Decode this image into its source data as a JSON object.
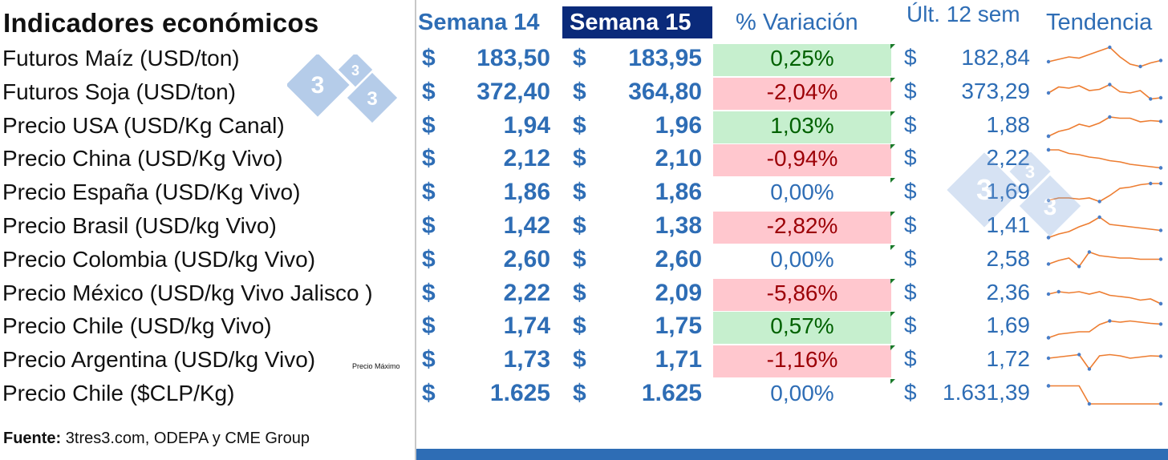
{
  "header": {
    "title": "Indicadores económicos",
    "col_week14": "Semana 14",
    "col_week15": "Semana 15",
    "col_variation": "% Variación",
    "col_last12": "Últ. 12 sem",
    "col_trend": "Tendencia"
  },
  "currency_symbol": "$",
  "colors": {
    "accent_blue": "#2e6db5",
    "header_navy": "#0a2a7a",
    "positive_fill": "#c6efce",
    "positive_text": "#006100",
    "negative_fill": "#ffc7ce",
    "negative_text": "#9c0006",
    "sparkline": "#ed7d31",
    "sparkline_marker": "#4a7ec7"
  },
  "logo_text": "3 3 3",
  "rows": [
    {
      "label": "Futuros Maíz (USD/ton)",
      "w14": "183,50",
      "w15": "183,95",
      "variation": "0,25%",
      "status": "pos",
      "last12": "182,84",
      "trend": [
        0.4,
        0.5,
        0.6,
        0.55,
        0.7,
        0.85,
        1.0,
        0.6,
        0.3,
        0.2,
        0.35,
        0.45
      ]
    },
    {
      "label": "Futuros Soja (USD/ton)",
      "w14": "372,40",
      "w15": "364,80",
      "variation": "-2,04%",
      "status": "neg",
      "last12": "373,29",
      "trend": [
        0.5,
        0.75,
        0.7,
        0.8,
        0.6,
        0.65,
        0.85,
        0.55,
        0.5,
        0.6,
        0.25,
        0.3
      ]
    },
    {
      "label": "Precio USA (USD/Kg Canal)",
      "w14": "1,94",
      "w15": "1,96",
      "variation": "1,03%",
      "status": "pos",
      "last12": "1,88",
      "trend": [
        0.1,
        0.3,
        0.4,
        0.6,
        0.5,
        0.65,
        0.9,
        0.85,
        0.85,
        0.7,
        0.75,
        0.72
      ]
    },
    {
      "label": "Precio China (USD/Kg Vivo)",
      "w14": "2,12",
      "w15": "2,10",
      "variation": "-0,94%",
      "status": "neg",
      "last12": "2,22",
      "trend": [
        0.9,
        0.9,
        0.75,
        0.7,
        0.6,
        0.55,
        0.45,
        0.4,
        0.3,
        0.25,
        0.2,
        0.15
      ]
    },
    {
      "label": "Precio España (USD/Kg Vivo)",
      "w14": "1,86",
      "w15": "1,86",
      "variation": "0,00%",
      "status": "zero",
      "last12": "1,69",
      "trend": [
        0.2,
        0.3,
        0.3,
        0.25,
        0.3,
        0.15,
        0.4,
        0.7,
        0.75,
        0.85,
        0.9,
        0.9
      ]
    },
    {
      "label": "Precio  Brasil (USD/kg Vivo)",
      "w14": "1,42",
      "w15": "1,38",
      "variation": "-2,82%",
      "status": "neg",
      "last12": "1,41",
      "trend": [
        0.05,
        0.2,
        0.3,
        0.5,
        0.65,
        0.9,
        0.6,
        0.55,
        0.5,
        0.45,
        0.4,
        0.35
      ]
    },
    {
      "label": "Precio Colombia (USD/kg Vivo)",
      "w14": "2,60",
      "w15": "2,60",
      "variation": "0,00%",
      "status": "zero",
      "last12": "2,58",
      "trend": [
        0.35,
        0.5,
        0.6,
        0.25,
        0.85,
        0.7,
        0.65,
        0.6,
        0.6,
        0.55,
        0.55,
        0.55
      ]
    },
    {
      "label": "Precio México (USD/kg Vivo Jalisco )",
      "w14": "2,22",
      "w15": "2,09",
      "variation": "-5,86%",
      "status": "neg",
      "last12": "2,36",
      "trend": [
        0.5,
        0.6,
        0.55,
        0.6,
        0.5,
        0.6,
        0.45,
        0.4,
        0.35,
        0.25,
        0.3,
        0.1
      ]
    },
    {
      "label": "Precio Chile (USD/kg Vivo)",
      "w14": "1,74",
      "w15": "1,75",
      "variation": "0,57%",
      "status": "pos",
      "last12": "1,69",
      "trend": [
        0.05,
        0.2,
        0.25,
        0.3,
        0.3,
        0.6,
        0.75,
        0.7,
        0.75,
        0.7,
        0.65,
        0.62
      ]
    },
    {
      "label": "Precio Argentina (USD/kg Vivo)",
      "note": "Precio Máximo",
      "w14": "1,73",
      "w15": "1,71",
      "variation": "-1,16%",
      "status": "neg",
      "last12": "1,72",
      "trend": [
        0.6,
        0.65,
        0.7,
        0.75,
        0.15,
        0.7,
        0.75,
        0.7,
        0.6,
        0.65,
        0.7,
        0.68
      ]
    },
    {
      "label": "Precio Chile ($CLP/Kg)",
      "w14": "1.625",
      "w15": "1.625",
      "variation": "0,00%",
      "status": "zero",
      "last12": "1.631,39",
      "trend": [
        0.85,
        0.85,
        0.85,
        0.85,
        0.1,
        0.1,
        0.1,
        0.1,
        0.1,
        0.1,
        0.1,
        0.1
      ]
    }
  ],
  "source": {
    "label": "Fuente:",
    "text": " 3tres3.com, ODEPA y CME Group"
  }
}
